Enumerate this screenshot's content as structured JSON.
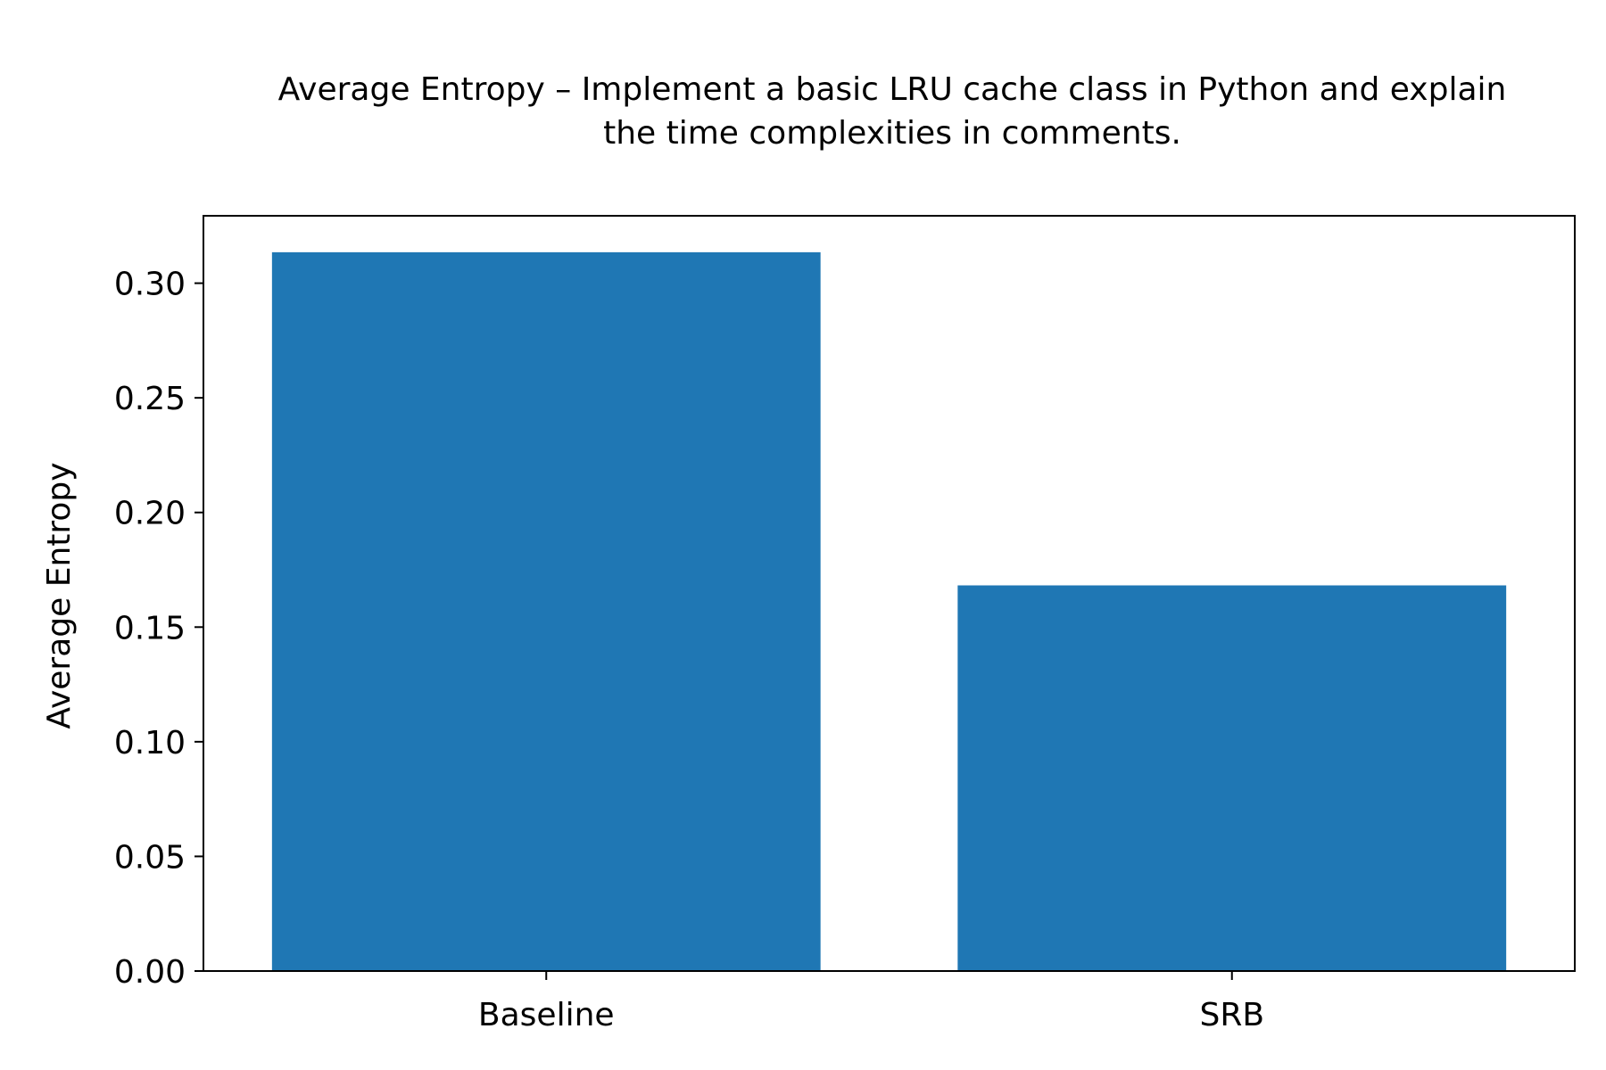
{
  "colors": {
    "bar": "#1f77b4",
    "axis": "#000000",
    "background": "#ffffff"
  },
  "chart_data": {
    "type": "bar",
    "title_lines": [
      "Average Entropy – Implement a basic LRU cache class in Python and explain",
      "the time complexities in comments."
    ],
    "xlabel": "",
    "ylabel": "Average Entropy",
    "categories": [
      "Baseline",
      "SRB"
    ],
    "values": [
      0.3135,
      0.1682
    ],
    "ylim": [
      0,
      0.3294
    ],
    "yticks": [
      0.0,
      0.05,
      0.1,
      0.15,
      0.2,
      0.25,
      0.3
    ],
    "ytick_labels": [
      "0.00",
      "0.05",
      "0.10",
      "0.15",
      "0.20",
      "0.25",
      "0.30"
    ],
    "grid": false,
    "legend": "none"
  }
}
